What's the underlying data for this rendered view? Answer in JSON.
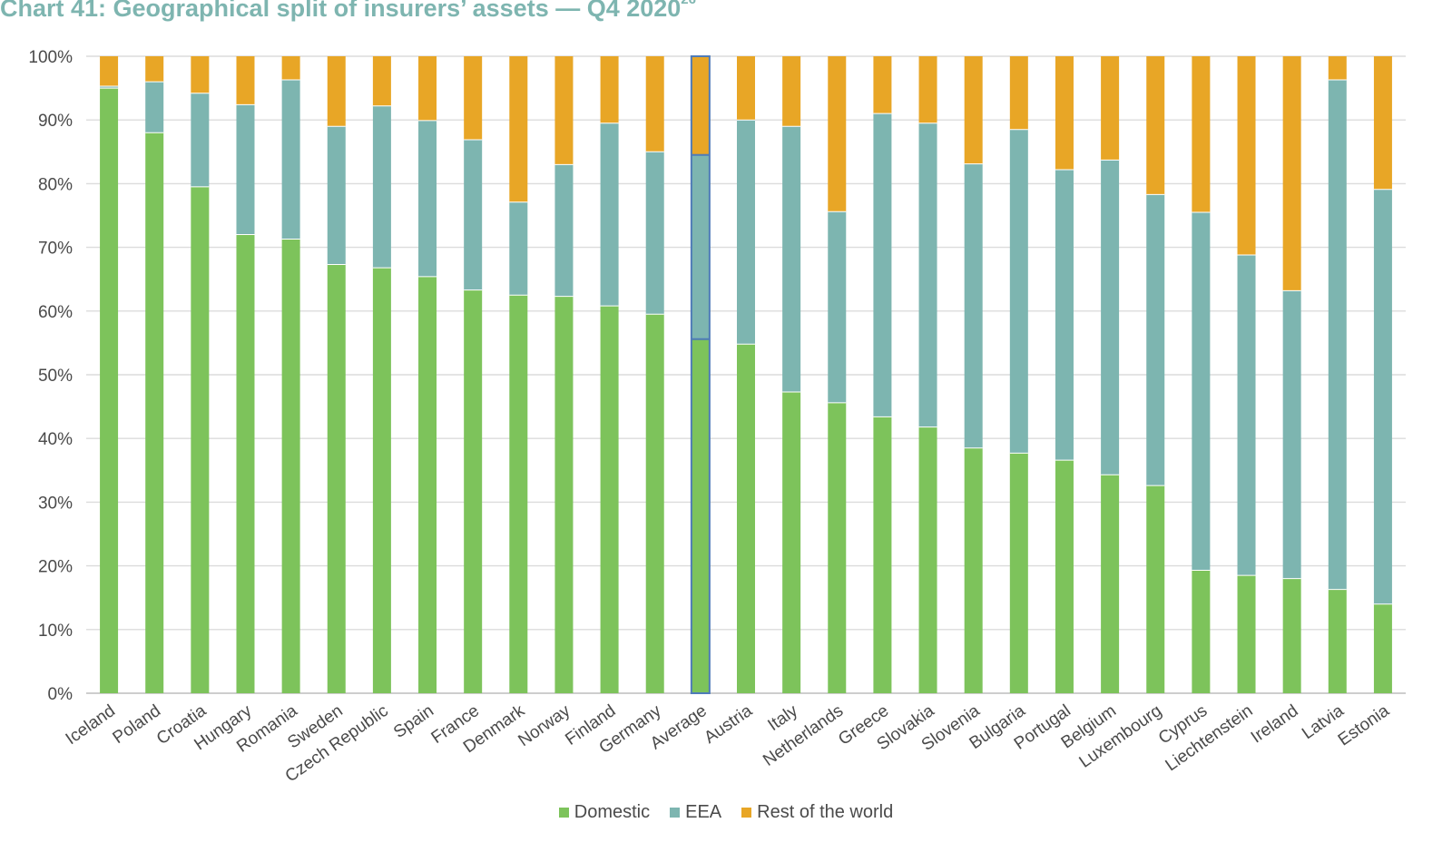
{
  "title": {
    "text": "Chart 41: Geographical split of insurers’ assets — Q4 2020",
    "footnote": "26"
  },
  "legend": [
    {
      "name": "Domestic",
      "color": "#7dc35b"
    },
    {
      "name": "EEA",
      "color": "#7db5b0"
    },
    {
      "name": "Rest of the world",
      "color": "#e8a626"
    }
  ],
  "chart_data": {
    "type": "bar",
    "stacked": true,
    "title": "Chart 41: Geographical split of insurers’ assets — Q4 2020",
    "xlabel": "",
    "ylabel": "",
    "ylim": [
      0,
      100
    ],
    "y_ticks": [
      "0%",
      "10%",
      "20%",
      "30%",
      "40%",
      "50%",
      "60%",
      "70%",
      "80%",
      "90%",
      "100%"
    ],
    "grid": "horizontal",
    "legend_position": "bottom",
    "highlighted_category": "Average",
    "categories": [
      "Iceland",
      "Poland",
      "Croatia",
      "Hungary",
      "Romania",
      "Sweden",
      "Czech Republic",
      "Spain",
      "France",
      "Denmark",
      "Norway",
      "Finland",
      "Germany",
      "Average",
      "Austria",
      "Italy",
      "Netherlands",
      "Greece",
      "Slovakia",
      "Slovenia",
      "Bulgaria",
      "Portugal",
      "Belgium",
      "Luxembourg",
      "Cyprus",
      "Liechtenstein",
      "Ireland",
      "Latvia",
      "Estonia"
    ],
    "series": [
      {
        "name": "Domestic",
        "color": "#7dc35b",
        "values": [
          95,
          88,
          79.5,
          72,
          71.3,
          67.3,
          66.8,
          65.4,
          63.3,
          62.5,
          62.3,
          60.8,
          59.5,
          55.6,
          54.8,
          47.3,
          45.6,
          43.4,
          41.8,
          38.5,
          37.7,
          36.6,
          34.3,
          32.6,
          19.3,
          18.5,
          18,
          16.3,
          14
        ]
      },
      {
        "name": "EEA",
        "color": "#7db5b0",
        "values": [
          0.3,
          8,
          14.7,
          20.4,
          25,
          21.7,
          25.4,
          24.5,
          23.6,
          14.6,
          20.7,
          28.7,
          25.5,
          28.9,
          35.2,
          41.7,
          30,
          47.6,
          47.7,
          44.6,
          50.8,
          45.6,
          49.4,
          45.7,
          56.2,
          50.3,
          45.2,
          80,
          65.1
        ]
      },
      {
        "name": "Rest of the world",
        "color": "#e8a626",
        "values": [
          4.7,
          4,
          5.8,
          7.6,
          3.7,
          11,
          7.8,
          10.1,
          13.1,
          22.9,
          17,
          10.5,
          15,
          15.5,
          10,
          11,
          24.4,
          9,
          10.5,
          16.9,
          11.5,
          17.8,
          16.3,
          21.7,
          24.5,
          31.2,
          36.8,
          3.7,
          20.9
        ]
      }
    ]
  }
}
